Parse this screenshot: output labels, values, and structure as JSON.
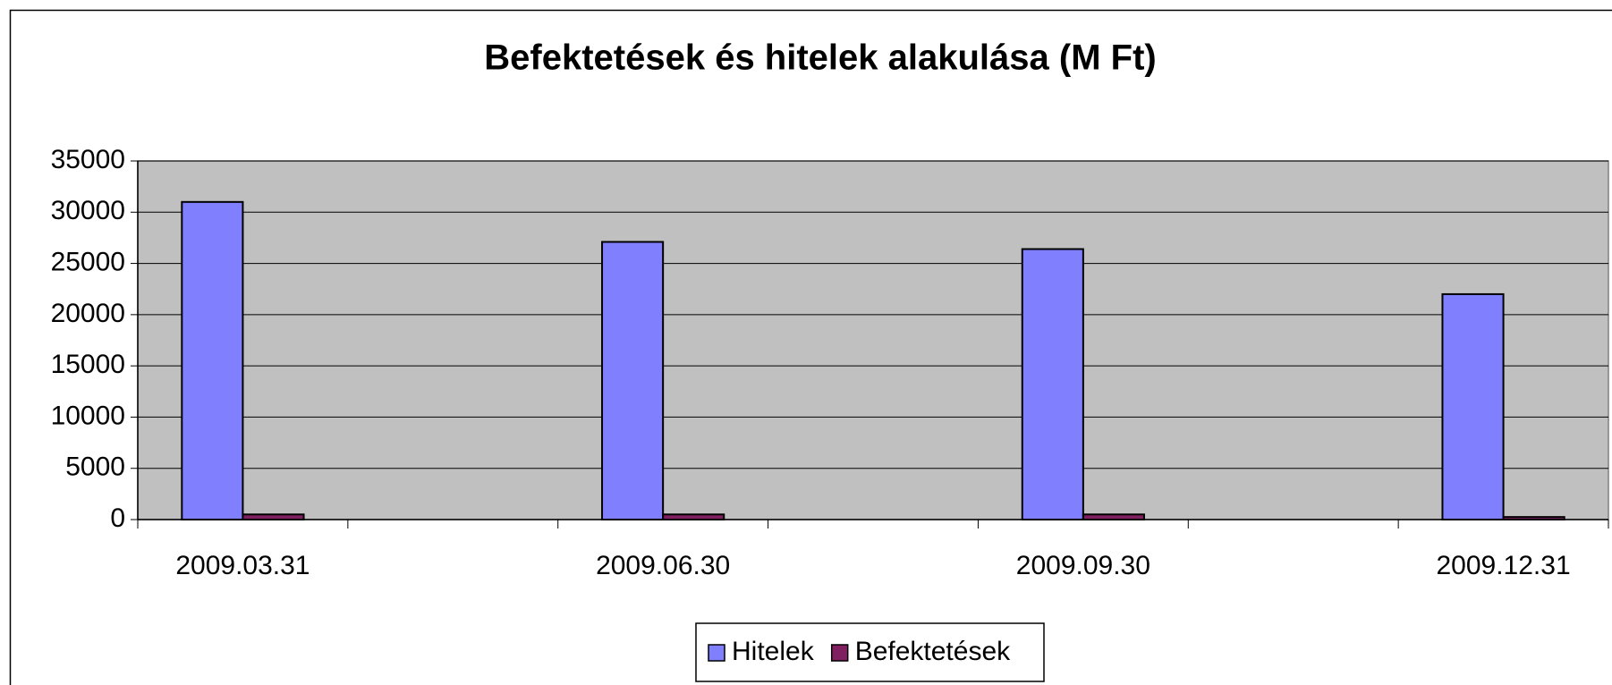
{
  "chart_data": {
    "type": "bar",
    "title": "Befektetések és hitelek alakulása (M Ft)",
    "categories": [
      "2009.03.31",
      null,
      "2009.06.30",
      null,
      "2009.09.30",
      null,
      "2009.12.31"
    ],
    "series": [
      {
        "name": "Hitelek",
        "color": "#8080ff",
        "values": [
          31000,
          null,
          27100,
          null,
          26400,
          null,
          22000
        ]
      },
      {
        "name": "Befektetések",
        "color": "#802060",
        "values": [
          500,
          null,
          500,
          null,
          500,
          null,
          250
        ]
      }
    ],
    "ylim": [
      0,
      35000
    ],
    "yticks": [
      0,
      5000,
      10000,
      15000,
      20000,
      25000,
      30000,
      35000
    ],
    "grid": true,
    "legend": "bottom"
  }
}
